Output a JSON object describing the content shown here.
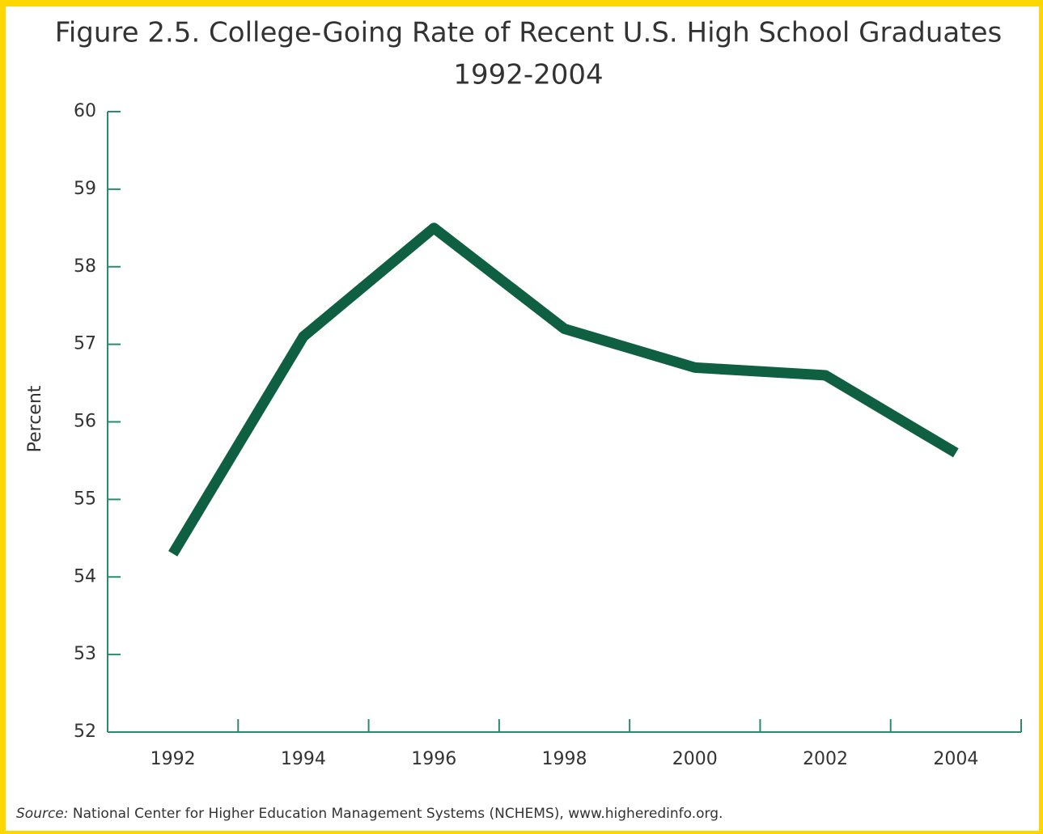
{
  "chart_data": {
    "type": "line",
    "title": "Figure 2.5.  College-Going Rate of Recent U.S. High School Graduates",
    "subtitle": "1992-2004",
    "y_label": "Percent",
    "categories": [
      "1992",
      "1994",
      "1996",
      "1998",
      "2000",
      "2002",
      "2004"
    ],
    "series": [
      {
        "name": "College-going rate",
        "color": "#0f5f42",
        "values": [
          54.3,
          57.1,
          58.5,
          57.2,
          56.7,
          56.6,
          55.6
        ]
      }
    ],
    "ylim": [
      52,
      60
    ],
    "yticks": [
      52,
      53,
      54,
      55,
      56,
      57,
      58,
      59,
      60
    ],
    "source_label": "Source:",
    "source_text": "National Center for Higher Education Management Systems (NCHEMS), www.higheredinfo.org."
  }
}
